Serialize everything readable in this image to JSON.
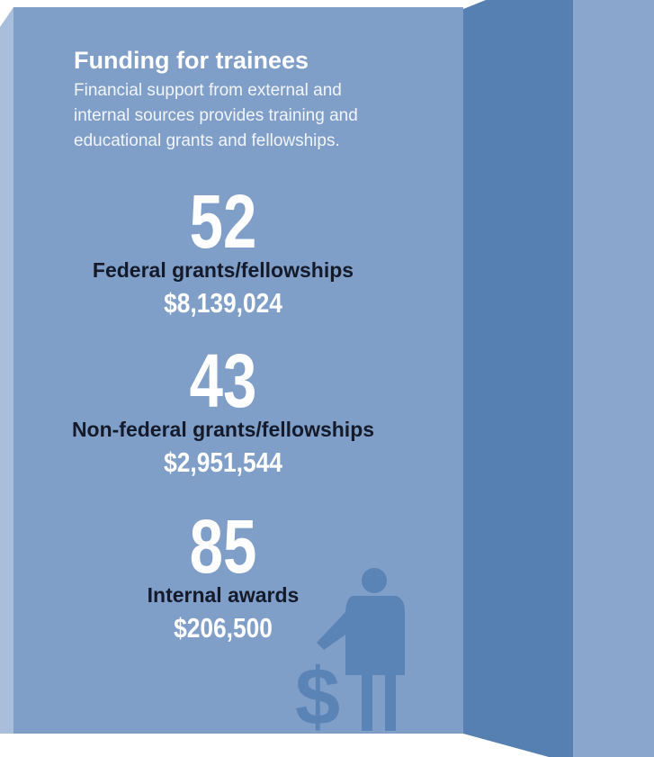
{
  "header": {
    "title": "Funding for trainees",
    "subtitle": [
      "Financial support from external and",
      "internal sources provides training and",
      "educational grants and fellowships."
    ]
  },
  "items": [
    {
      "count": 52,
      "label": "Federal grants/fellowships",
      "amount": "$8,139,024"
    },
    {
      "count": 43,
      "label": "Non-federal grants/fellowships",
      "amount": "$2,951,544"
    },
    {
      "count": 85,
      "label": "Internal awards",
      "amount": "$206,500"
    }
  ]
}
